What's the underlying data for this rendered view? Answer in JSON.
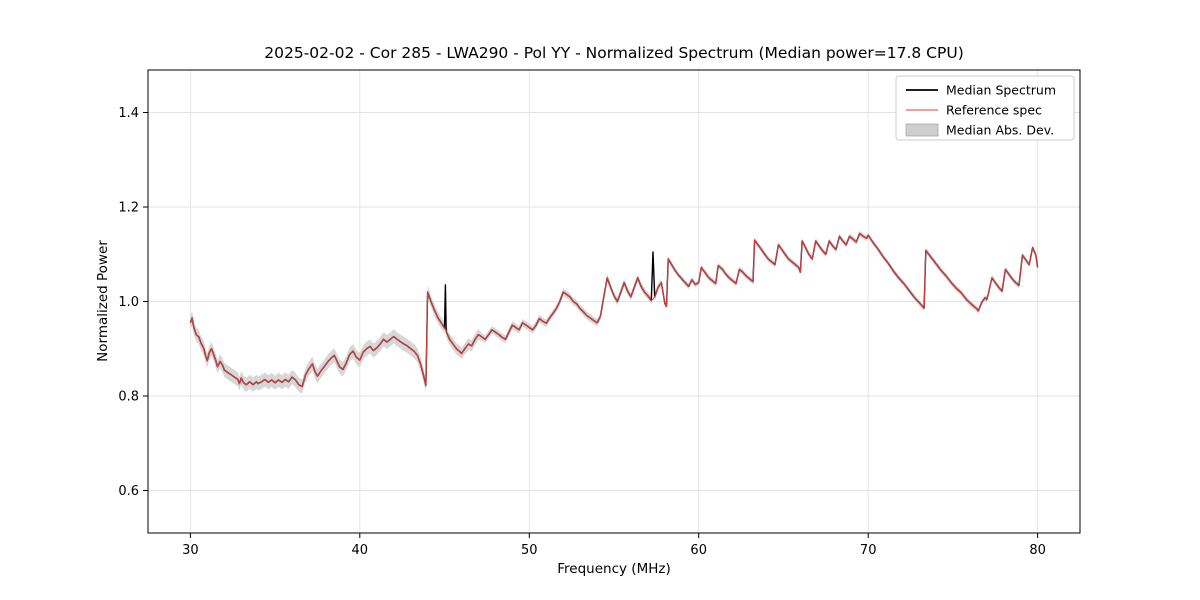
{
  "chart_data": {
    "type": "line",
    "title": "2025-02-02 - Cor 285 - LWA290 - Pol YY - Normalized Spectrum (Median power=17.8 CPU)",
    "xlabel": "Frequency (MHz)",
    "ylabel": "Normalized Power",
    "xlim": [
      27.5,
      82.5
    ],
    "ylim": [
      0.51,
      1.49
    ],
    "xticks": [
      30,
      40,
      50,
      60,
      70,
      80
    ],
    "yticks": [
      0.6,
      0.8,
      1.0,
      1.2,
      1.4
    ],
    "grid": true,
    "colors": {
      "median": "#000000",
      "reference": "#e03c3c",
      "band": "#c9c9c9",
      "grid": "#e3e3e3",
      "axis": "#000000"
    },
    "legend": {
      "position": "upper right",
      "entries": [
        {
          "label": "Median Spectrum",
          "type": "line",
          "color": "#000000",
          "lw": 1.8
        },
        {
          "label": "Reference spec",
          "type": "line",
          "color": "#e03c3c",
          "lw": 1.1
        },
        {
          "label": "Median Abs. Dev.",
          "type": "band",
          "color": "#c9c9c9"
        }
      ]
    },
    "band_halfwidth_segments": [
      {
        "until": 44,
        "hw": 0.015
      },
      {
        "until": 47,
        "hw": 0.012
      },
      {
        "until": 58,
        "hw": 0.008
      },
      {
        "until": 83,
        "hw": 0.006
      }
    ],
    "points_note": "entries are [freq_MHz, median_power, reference_power?]; reference equals median unless a third value is given",
    "points": [
      [
        30.0,
        0.955
      ],
      [
        30.1,
        0.965
      ],
      [
        30.2,
        0.945
      ],
      [
        30.35,
        0.93
      ],
      [
        30.5,
        0.925
      ],
      [
        30.65,
        0.91
      ],
      [
        30.8,
        0.9
      ],
      [
        30.9,
        0.885
      ],
      [
        31.0,
        0.875
      ],
      [
        31.1,
        0.89
      ],
      [
        31.25,
        0.9
      ],
      [
        31.4,
        0.885
      ],
      [
        31.5,
        0.875
      ],
      [
        31.6,
        0.862
      ],
      [
        31.75,
        0.873
      ],
      [
        31.9,
        0.865
      ],
      [
        32.0,
        0.855
      ],
      [
        32.2,
        0.85
      ],
      [
        32.4,
        0.845
      ],
      [
        32.6,
        0.84
      ],
      [
        32.8,
        0.835
      ],
      [
        32.9,
        0.826
      ],
      [
        33.0,
        0.838
      ],
      [
        33.15,
        0.828
      ],
      [
        33.3,
        0.824
      ],
      [
        33.5,
        0.83
      ],
      [
        33.7,
        0.824
      ],
      [
        33.9,
        0.83
      ],
      [
        34.0,
        0.826
      ],
      [
        34.2,
        0.83
      ],
      [
        34.4,
        0.835
      ],
      [
        34.6,
        0.829
      ],
      [
        34.8,
        0.834
      ],
      [
        35.0,
        0.828
      ],
      [
        35.2,
        0.834
      ],
      [
        35.4,
        0.829
      ],
      [
        35.6,
        0.835
      ],
      [
        35.8,
        0.83
      ],
      [
        36.0,
        0.84
      ],
      [
        36.2,
        0.834
      ],
      [
        36.4,
        0.824
      ],
      [
        36.6,
        0.82
      ],
      [
        36.8,
        0.845
      ],
      [
        37.0,
        0.858
      ],
      [
        37.2,
        0.868
      ],
      [
        37.35,
        0.852
      ],
      [
        37.5,
        0.842
      ],
      [
        37.7,
        0.853
      ],
      [
        37.9,
        0.862
      ],
      [
        38.1,
        0.872
      ],
      [
        38.3,
        0.88
      ],
      [
        38.5,
        0.886
      ],
      [
        38.65,
        0.874
      ],
      [
        38.8,
        0.862
      ],
      [
        39.0,
        0.856
      ],
      [
        39.2,
        0.87
      ],
      [
        39.4,
        0.888
      ],
      [
        39.6,
        0.895
      ],
      [
        39.8,
        0.882
      ],
      [
        40.0,
        0.876
      ],
      [
        40.2,
        0.893
      ],
      [
        40.4,
        0.9
      ],
      [
        40.6,
        0.905
      ],
      [
        40.8,
        0.896
      ],
      [
        41.0,
        0.902
      ],
      [
        41.2,
        0.91
      ],
      [
        41.4,
        0.92
      ],
      [
        41.6,
        0.914
      ],
      [
        41.8,
        0.92
      ],
      [
        42.0,
        0.926
      ],
      [
        42.2,
        0.92
      ],
      [
        42.4,
        0.915
      ],
      [
        42.6,
        0.91
      ],
      [
        42.8,
        0.906
      ],
      [
        43.0,
        0.9
      ],
      [
        43.2,
        0.895
      ],
      [
        43.4,
        0.886
      ],
      [
        43.6,
        0.866
      ],
      [
        43.8,
        0.838
      ],
      [
        43.9,
        0.822
      ],
      [
        44.0,
        1.02
      ],
      [
        44.2,
        1.0
      ],
      [
        44.4,
        0.982
      ],
      [
        44.6,
        0.966
      ],
      [
        44.8,
        0.955
      ],
      [
        45.0,
        0.944
      ],
      [
        45.05,
        1.035,
        0.941
      ],
      [
        45.1,
        0.936
      ],
      [
        45.3,
        0.92
      ],
      [
        45.5,
        0.91
      ],
      [
        45.7,
        0.9
      ],
      [
        45.9,
        0.894
      ],
      [
        46.0,
        0.89
      ],
      [
        46.2,
        0.9
      ],
      [
        46.4,
        0.91
      ],
      [
        46.6,
        0.906
      ],
      [
        46.8,
        0.92
      ],
      [
        47.0,
        0.93
      ],
      [
        47.2,
        0.925
      ],
      [
        47.4,
        0.92
      ],
      [
        47.6,
        0.93
      ],
      [
        47.8,
        0.94
      ],
      [
        48.0,
        0.935
      ],
      [
        48.2,
        0.93
      ],
      [
        48.4,
        0.924
      ],
      [
        48.6,
        0.92
      ],
      [
        48.8,
        0.935
      ],
      [
        49.0,
        0.95
      ],
      [
        49.2,
        0.945
      ],
      [
        49.4,
        0.94
      ],
      [
        49.6,
        0.955
      ],
      [
        49.8,
        0.95
      ],
      [
        50.0,
        0.945
      ],
      [
        50.2,
        0.94
      ],
      [
        50.4,
        0.95
      ],
      [
        50.6,
        0.964
      ],
      [
        50.8,
        0.958
      ],
      [
        51.0,
        0.954
      ],
      [
        51.2,
        0.965
      ],
      [
        51.4,
        0.975
      ],
      [
        51.6,
        0.985
      ],
      [
        51.8,
        1.0
      ],
      [
        52.0,
        1.02
      ],
      [
        52.2,
        1.015
      ],
      [
        52.4,
        1.01
      ],
      [
        52.6,
        1.0
      ],
      [
        52.8,
        0.995
      ],
      [
        53.0,
        0.985
      ],
      [
        53.2,
        0.978
      ],
      [
        53.4,
        0.97
      ],
      [
        53.6,
        0.965
      ],
      [
        53.8,
        0.96
      ],
      [
        54.0,
        0.955
      ],
      [
        54.2,
        0.968
      ],
      [
        54.4,
        1.01
      ],
      [
        54.6,
        1.05
      ],
      [
        54.8,
        1.03
      ],
      [
        55.0,
        1.012
      ],
      [
        55.2,
        1.0
      ],
      [
        55.4,
        1.02
      ],
      [
        55.6,
        1.04
      ],
      [
        55.8,
        1.022
      ],
      [
        56.0,
        1.01
      ],
      [
        56.2,
        1.03
      ],
      [
        56.4,
        1.05
      ],
      [
        56.6,
        1.032
      ],
      [
        56.8,
        1.02
      ],
      [
        57.0,
        1.012
      ],
      [
        57.2,
        1.002
      ],
      [
        57.3,
        1.105,
        1.005
      ],
      [
        57.4,
        1.01
      ],
      [
        57.6,
        1.03
      ],
      [
        57.8,
        1.04
      ],
      [
        58.0,
        0.996
      ],
      [
        58.1,
        0.99
      ],
      [
        58.2,
        1.09
      ],
      [
        58.4,
        1.078
      ],
      [
        58.6,
        1.066
      ],
      [
        58.8,
        1.056
      ],
      [
        59.0,
        1.048
      ],
      [
        59.2,
        1.04
      ],
      [
        59.4,
        1.032
      ],
      [
        59.6,
        1.046
      ],
      [
        59.8,
        1.036
      ],
      [
        60.0,
        1.04
      ],
      [
        60.15,
        1.072
      ],
      [
        60.4,
        1.06
      ],
      [
        60.6,
        1.05
      ],
      [
        60.8,
        1.044
      ],
      [
        61.0,
        1.038
      ],
      [
        61.15,
        1.076
      ],
      [
        61.4,
        1.068
      ],
      [
        61.6,
        1.058
      ],
      [
        61.8,
        1.05
      ],
      [
        62.0,
        1.044
      ],
      [
        62.2,
        1.038
      ],
      [
        62.4,
        1.068
      ],
      [
        62.6,
        1.062
      ],
      [
        62.8,
        1.054
      ],
      [
        63.0,
        1.048
      ],
      [
        63.2,
        1.042
      ],
      [
        63.3,
        1.13
      ],
      [
        63.5,
        1.12
      ],
      [
        63.7,
        1.11
      ],
      [
        63.9,
        1.1
      ],
      [
        64.1,
        1.09
      ],
      [
        64.3,
        1.084
      ],
      [
        64.5,
        1.078
      ],
      [
        64.7,
        1.12
      ],
      [
        64.9,
        1.11
      ],
      [
        65.1,
        1.1
      ],
      [
        65.3,
        1.09
      ],
      [
        65.5,
        1.084
      ],
      [
        65.7,
        1.078
      ],
      [
        65.9,
        1.072
      ],
      [
        66.0,
        1.062
      ],
      [
        66.1,
        1.128
      ],
      [
        66.3,
        1.114
      ],
      [
        66.5,
        1.1
      ],
      [
        66.7,
        1.09
      ],
      [
        66.9,
        1.128
      ],
      [
        67.1,
        1.118
      ],
      [
        67.3,
        1.108
      ],
      [
        67.5,
        1.1
      ],
      [
        67.7,
        1.128
      ],
      [
        67.9,
        1.118
      ],
      [
        68.1,
        1.11
      ],
      [
        68.3,
        1.138
      ],
      [
        68.5,
        1.128
      ],
      [
        68.7,
        1.12
      ],
      [
        68.9,
        1.138
      ],
      [
        69.1,
        1.132
      ],
      [
        69.3,
        1.126
      ],
      [
        69.5,
        1.144
      ],
      [
        69.7,
        1.138
      ],
      [
        69.9,
        1.134
      ],
      [
        70.0,
        1.14
      ],
      [
        70.3,
        1.124
      ],
      [
        70.6,
        1.11
      ],
      [
        70.9,
        1.094
      ],
      [
        71.2,
        1.08
      ],
      [
        71.5,
        1.064
      ],
      [
        71.8,
        1.05
      ],
      [
        72.1,
        1.038
      ],
      [
        72.4,
        1.024
      ],
      [
        72.7,
        1.01
      ],
      [
        73.0,
        0.998
      ],
      [
        73.2,
        0.99
      ],
      [
        73.3,
        0.986
      ],
      [
        73.4,
        1.108
      ],
      [
        73.7,
        1.094
      ],
      [
        74.0,
        1.08
      ],
      [
        74.3,
        1.066
      ],
      [
        74.6,
        1.054
      ],
      [
        74.9,
        1.04
      ],
      [
        75.2,
        1.028
      ],
      [
        75.5,
        1.018
      ],
      [
        75.8,
        1.004
      ],
      [
        76.1,
        0.994
      ],
      [
        76.4,
        0.985
      ],
      [
        76.5,
        0.98
      ],
      [
        76.7,
        0.998
      ],
      [
        76.9,
        1.008
      ],
      [
        77.0,
        1.004
      ],
      [
        77.1,
        1.018
      ],
      [
        77.3,
        1.05
      ],
      [
        77.5,
        1.04
      ],
      [
        77.7,
        1.03
      ],
      [
        77.9,
        1.022
      ],
      [
        78.1,
        1.068
      ],
      [
        78.3,
        1.058
      ],
      [
        78.5,
        1.048
      ],
      [
        78.7,
        1.04
      ],
      [
        78.9,
        1.034
      ],
      [
        79.1,
        1.098
      ],
      [
        79.3,
        1.088
      ],
      [
        79.5,
        1.078
      ],
      [
        79.7,
        1.114
      ],
      [
        79.9,
        1.098
      ],
      [
        80.0,
        1.072
      ]
    ]
  }
}
